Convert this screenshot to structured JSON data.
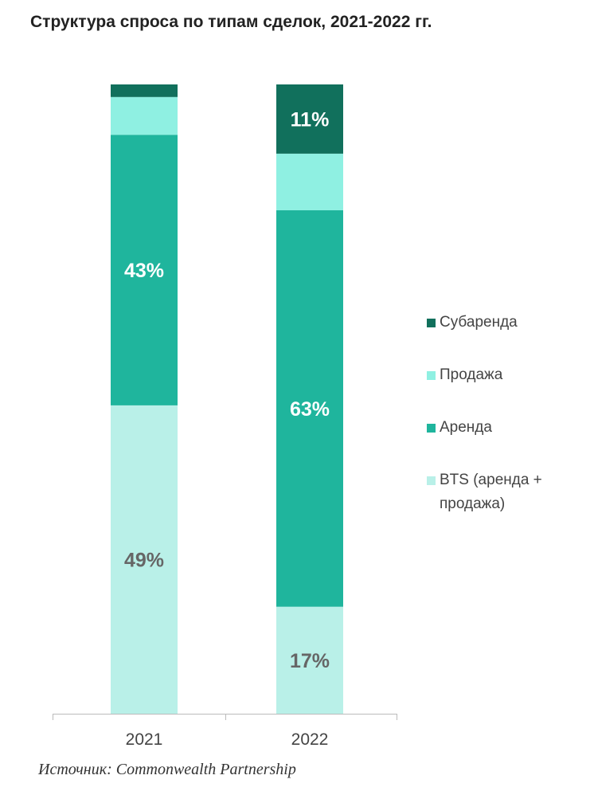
{
  "title": "Структура спроса по типам сделок, 2021-2022 гг.",
  "source": "Источник: Commonwealth Partnership",
  "chart_data": {
    "type": "bar",
    "stacked": true,
    "orientation": "vertical",
    "unit": "%",
    "categories": [
      "2021",
      "2022"
    ],
    "series": [
      {
        "name": "BTS (аренда + продажа)",
        "color": "#b9f0e8",
        "values": [
          49,
          17
        ],
        "labels": [
          "49%",
          "17%"
        ],
        "label_color": "#666666"
      },
      {
        "name": "Аренда",
        "color": "#1fb59d",
        "values": [
          43,
          63
        ],
        "labels": [
          "43%",
          "63%"
        ],
        "label_color": "#ffffff"
      },
      {
        "name": "Продажа",
        "color": "#8ff0e2",
        "values": [
          6,
          9
        ],
        "labels": [
          "",
          ""
        ],
        "label_color": "#ffffff"
      },
      {
        "name": "Субаренда",
        "color": "#11705c",
        "values": [
          2,
          11
        ],
        "labels": [
          "",
          "11%"
        ],
        "label_color": "#ffffff"
      }
    ],
    "ylim": [
      0,
      100
    ],
    "grid": false,
    "legend_position": "right",
    "axis_color": "#bbbbbb",
    "category_label_color": "#444444"
  }
}
